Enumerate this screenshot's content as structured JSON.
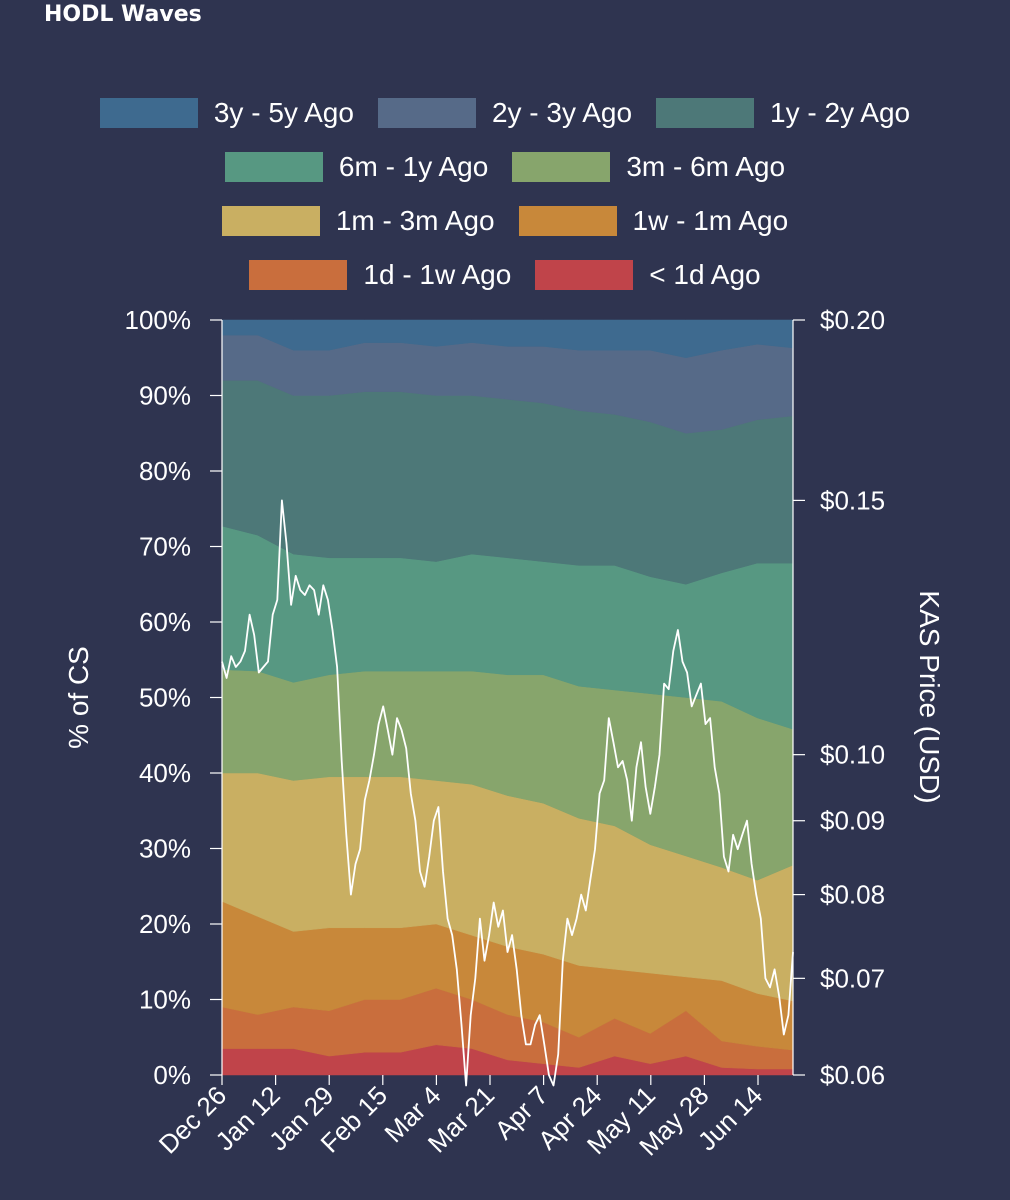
{
  "chart_data": {
    "type": "area",
    "title": "HODL Waves",
    "ylabel": "% of CS",
    "y2label": "KAS Price (USD)",
    "ylim": [
      0,
      100
    ],
    "y2lim": [
      0.06,
      0.2
    ],
    "y2scale": "log",
    "legend_position": "top",
    "grid": false,
    "x_tick_labels": [
      "Dec 26",
      "Jan 12",
      "Jan 29",
      "Feb 15",
      "Mar 4",
      "Mar 21",
      "Apr 7",
      "Apr 24",
      "May 11",
      "May 28",
      "Jun 14"
    ],
    "y_tick_labels": [
      "0%",
      "10%",
      "20%",
      "30%",
      "40%",
      "50%",
      "60%",
      "70%",
      "80%",
      "90%",
      "100%"
    ],
    "y2_tick_values": [
      0.06,
      0.07,
      0.08,
      0.09,
      0.1,
      0.15,
      0.2
    ],
    "y2_tick_labels": [
      "$0.06",
      "$0.07",
      "$0.08",
      "$0.09",
      "$0.10",
      "$0.15",
      "$0.20"
    ],
    "x": [
      "Dec 26",
      "Jan 6",
      "Jan 17",
      "Jan 28",
      "Feb 8",
      "Feb 19",
      "Mar 2",
      "Mar 13",
      "Mar 24",
      "Apr 4",
      "Apr 15",
      "Apr 26",
      "May 7",
      "May 18",
      "May 29",
      "Jun 9",
      "Jun 20"
    ],
    "series": [
      {
        "name": "< 1d Ago",
        "color": "#c0444a",
        "values": [
          3.5,
          3.5,
          3.5,
          2.5,
          3.0,
          3.0,
          4.0,
          3.5,
          2.0,
          1.5,
          1.0,
          2.5,
          1.5,
          2.5,
          1.0,
          0.8,
          0.8
        ]
      },
      {
        "name": "1d - 1w Ago",
        "color": "#c96e3d",
        "values": [
          5.5,
          4.5,
          5.5,
          6.0,
          7.0,
          7.0,
          7.5,
          6.5,
          6.0,
          5.5,
          4.0,
          5.0,
          4.0,
          6.0,
          3.5,
          3.0,
          2.5
        ]
      },
      {
        "name": "1w - 1m Ago",
        "color": "#c8883a",
        "values": [
          14.0,
          13.0,
          10.0,
          11.0,
          9.5,
          9.5,
          8.5,
          8.5,
          9.0,
          9.0,
          9.5,
          6.5,
          8.0,
          4.5,
          8.0,
          7.0,
          6.5
        ]
      },
      {
        "name": "1m - 3m Ago",
        "color": "#c9af62",
        "values": [
          17.0,
          19.0,
          20.0,
          20.0,
          20.0,
          20.0,
          19.0,
          20.0,
          20.0,
          20.0,
          19.5,
          19.0,
          17.0,
          16.0,
          15.0,
          15.0,
          18.0
        ]
      },
      {
        "name": "3m - 6m Ago",
        "color": "#87a56c",
        "values": [
          13.7,
          13.5,
          13.0,
          13.5,
          14.0,
          14.0,
          14.5,
          15.0,
          16.0,
          17.0,
          17.5,
          18.0,
          20.0,
          21.0,
          22.0,
          21.5,
          18.0
        ]
      },
      {
        "name": "6m - 1y Ago",
        "color": "#579882",
        "values": [
          19.0,
          18.0,
          17.0,
          15.5,
          15.0,
          15.0,
          14.5,
          15.5,
          15.5,
          15.0,
          16.0,
          16.5,
          15.5,
          15.0,
          17.0,
          20.5,
          22.0
        ]
      },
      {
        "name": "1y - 2y Ago",
        "color": "#4d7878",
        "values": [
          19.3,
          20.5,
          21.0,
          21.5,
          22.0,
          22.0,
          22.0,
          21.0,
          21.0,
          21.0,
          20.5,
          20.0,
          20.5,
          20.0,
          19.0,
          19.0,
          19.5
        ]
      },
      {
        "name": "2y - 3y Ago",
        "color": "#566a88",
        "values": [
          6.0,
          6.0,
          6.0,
          6.0,
          6.5,
          6.5,
          6.5,
          7.0,
          7.0,
          7.5,
          8.0,
          8.5,
          9.5,
          10.0,
          10.5,
          10.0,
          9.0
        ]
      },
      {
        "name": "3y - 5y Ago",
        "color": "#3e6a8f",
        "values": [
          2.0,
          2.0,
          2.0,
          2.0,
          2.0,
          2.0,
          2.0,
          2.0,
          2.5,
          2.5,
          3.0,
          3.0,
          3.0,
          3.5,
          3.5,
          3.5,
          3.5
        ]
      }
    ],
    "price_series": {
      "name": "KAS Price",
      "color": "#ffffff",
      "values": [
        0.116,
        0.113,
        0.117,
        0.115,
        0.116,
        0.118,
        0.125,
        0.121,
        0.114,
        0.115,
        0.116,
        0.125,
        0.128,
        0.15,
        0.14,
        0.127,
        0.133,
        0.13,
        0.129,
        0.131,
        0.13,
        0.125,
        0.131,
        0.128,
        0.122,
        0.115,
        0.099,
        0.088,
        0.08,
        0.084,
        0.086,
        0.093,
        0.096,
        0.1,
        0.105,
        0.108,
        0.104,
        0.1,
        0.106,
        0.104,
        0.101,
        0.094,
        0.09,
        0.083,
        0.081,
        0.085,
        0.09,
        0.092,
        0.083,
        0.077,
        0.075,
        0.071,
        0.065,
        0.059,
        0.066,
        0.07,
        0.077,
        0.072,
        0.075,
        0.079,
        0.076,
        0.078,
        0.073,
        0.075,
        0.071,
        0.066,
        0.063,
        0.063,
        0.065,
        0.066,
        0.063,
        0.06,
        0.059,
        0.062,
        0.072,
        0.077,
        0.075,
        0.077,
        0.08,
        0.078,
        0.082,
        0.086,
        0.094,
        0.096,
        0.106,
        0.102,
        0.098,
        0.099,
        0.096,
        0.09,
        0.098,
        0.102,
        0.095,
        0.091,
        0.095,
        0.1,
        0.112,
        0.111,
        0.118,
        0.122,
        0.116,
        0.114,
        0.108,
        0.11,
        0.112,
        0.105,
        0.106,
        0.098,
        0.094,
        0.085,
        0.083,
        0.088,
        0.086,
        0.088,
        0.09,
        0.084,
        0.08,
        0.077,
        0.07,
        0.069,
        0.071,
        0.068,
        0.064,
        0.066,
        0.073
      ]
    }
  }
}
